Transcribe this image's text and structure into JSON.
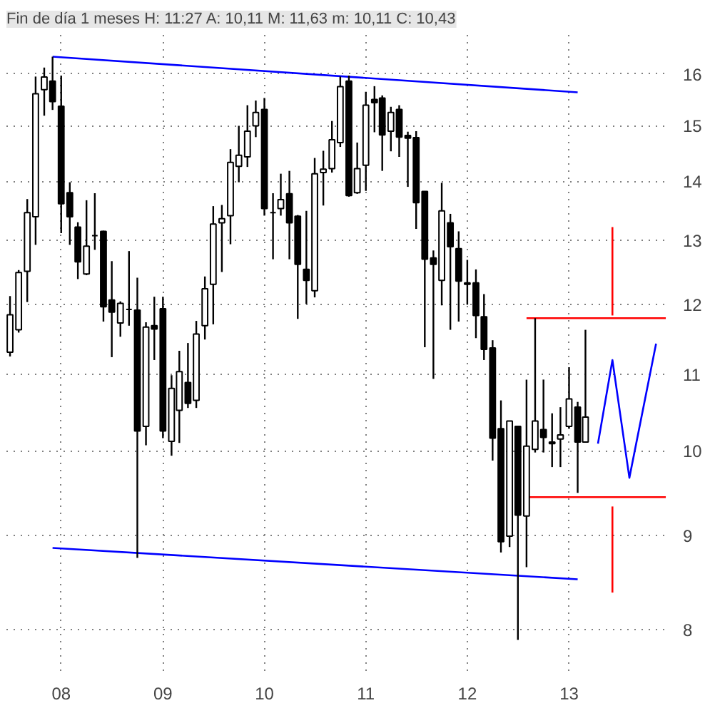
{
  "chart_data": {
    "type": "candlestick",
    "title": "Fin de día 1 meses H: 11:27 A: 10,11 M: 11,63 m: 10,11 C: 10,43",
    "x": [
      "2007-07",
      "2007-08",
      "2007-09",
      "2007-10",
      "2007-11",
      "2007-12",
      "2008-01",
      "2008-02",
      "2008-03",
      "2008-04",
      "2008-05",
      "2008-06",
      "2008-07",
      "2008-08",
      "2008-09",
      "2008-10",
      "2008-11",
      "2008-12",
      "2009-01",
      "2009-02",
      "2009-03",
      "2009-04",
      "2009-05",
      "2009-06",
      "2009-07",
      "2009-08",
      "2009-09",
      "2009-10",
      "2009-11",
      "2009-12",
      "2010-01",
      "2010-02",
      "2010-03",
      "2010-04",
      "2010-05",
      "2010-06",
      "2010-07",
      "2010-08",
      "2010-09",
      "2010-10",
      "2010-11",
      "2010-12",
      "2011-01",
      "2011-02",
      "2011-03",
      "2011-04",
      "2011-05",
      "2011-06",
      "2011-07",
      "2011-08",
      "2011-09",
      "2011-10",
      "2011-11",
      "2011-12",
      "2012-01",
      "2012-02",
      "2012-03",
      "2012-04",
      "2012-05",
      "2012-06",
      "2012-07",
      "2012-08",
      "2012-09",
      "2012-10",
      "2012-11",
      "2012-12",
      "2013-01",
      "2013-02",
      "2013-03"
    ],
    "ohlc": [
      [
        11.31,
        12.13,
        11.25,
        11.85
      ],
      [
        11.63,
        12.53,
        11.59,
        12.49
      ],
      [
        12.51,
        13.69,
        12.04,
        13.46
      ],
      [
        13.39,
        15.95,
        12.93,
        15.61
      ],
      [
        15.69,
        16.13,
        15.19,
        15.94
      ],
      [
        15.86,
        16.35,
        15.3,
        15.46
      ],
      [
        15.37,
        15.97,
        13.12,
        13.61
      ],
      [
        13.8,
        13.98,
        12.93,
        13.39
      ],
      [
        13.22,
        13.3,
        12.39,
        12.66
      ],
      [
        12.47,
        13.67,
        12.45,
        12.91
      ],
      [
        13.08,
        13.79,
        12.85,
        13.08
      ],
      [
        13.15,
        13.16,
        11.75,
        11.97
      ],
      [
        12.07,
        12.67,
        11.24,
        11.89
      ],
      [
        11.73,
        12.05,
        11.53,
        12.02
      ],
      [
        11.93,
        12.83,
        11.69,
        11.93
      ],
      [
        11.92,
        12.41,
        8.75,
        10.25
      ],
      [
        10.31,
        11.74,
        10.07,
        11.67
      ],
      [
        11.69,
        12.12,
        11.2,
        11.64
      ],
      [
        11.94,
        12.12,
        10.16,
        10.25
      ],
      [
        10.12,
        10.99,
        9.94,
        10.81
      ],
      [
        10.52,
        11.33,
        10.1,
        11.04
      ],
      [
        10.89,
        11.44,
        10.55,
        10.61
      ],
      [
        10.65,
        11.76,
        10.55,
        11.57
      ],
      [
        11.69,
        12.43,
        11.49,
        12.24
      ],
      [
        12.31,
        13.57,
        11.71,
        13.27
      ],
      [
        13.29,
        13.59,
        12.5,
        13.36
      ],
      [
        13.41,
        14.57,
        12.94,
        14.33
      ],
      [
        14.26,
        15.0,
        13.98,
        14.46
      ],
      [
        14.43,
        15.39,
        14.25,
        14.9
      ],
      [
        15.0,
        15.48,
        14.79,
        15.25
      ],
      [
        15.31,
        15.53,
        13.41,
        13.53
      ],
      [
        13.46,
        13.79,
        12.7,
        13.46
      ],
      [
        13.53,
        14.13,
        13.41,
        13.68
      ],
      [
        13.78,
        14.18,
        12.7,
        13.29
      ],
      [
        13.4,
        13.42,
        11.79,
        12.62
      ],
      [
        12.54,
        13.49,
        12.01,
        12.37
      ],
      [
        12.21,
        14.41,
        12.11,
        14.13
      ],
      [
        14.15,
        14.54,
        13.58,
        14.21
      ],
      [
        14.22,
        15.09,
        14.15,
        14.74
      ],
      [
        14.69,
        15.95,
        14.61,
        15.75
      ],
      [
        15.86,
        15.97,
        13.73,
        13.75
      ],
      [
        13.8,
        14.69,
        13.78,
        14.22
      ],
      [
        14.28,
        15.65,
        13.83,
        15.39
      ],
      [
        15.5,
        15.76,
        14.88,
        15.44
      ],
      [
        15.53,
        15.58,
        14.18,
        14.83
      ],
      [
        14.9,
        15.36,
        14.53,
        15.25
      ],
      [
        15.31,
        15.39,
        14.43,
        14.79
      ],
      [
        14.82,
        14.89,
        13.9,
        14.77
      ],
      [
        14.78,
        14.9,
        13.19,
        13.63
      ],
      [
        13.82,
        13.82,
        11.38,
        12.7
      ],
      [
        12.72,
        12.84,
        10.94,
        12.62
      ],
      [
        12.37,
        13.97,
        11.99,
        13.49
      ],
      [
        13.29,
        13.44,
        11.63,
        12.9
      ],
      [
        12.87,
        13.15,
        11.75,
        12.36
      ],
      [
        12.33,
        12.69,
        12.0,
        12.31
      ],
      [
        12.33,
        12.54,
        11.51,
        11.84
      ],
      [
        11.82,
        12.16,
        11.2,
        11.35
      ],
      [
        11.37,
        11.48,
        9.88,
        10.16
      ],
      [
        10.28,
        10.65,
        8.81,
        8.93
      ],
      [
        8.99,
        10.38,
        8.87,
        10.38
      ],
      [
        10.31,
        10.31,
        7.9,
        9.23
      ],
      [
        9.22,
        10.93,
        8.65,
        10.06
      ],
      [
        10.02,
        11.8,
        9.98,
        10.38
      ],
      [
        10.27,
        10.93,
        9.98,
        10.17
      ],
      [
        10.11,
        10.48,
        9.8,
        10.09
      ],
      [
        10.15,
        10.56,
        9.8,
        10.2
      ],
      [
        10.31,
        11.1,
        10.28,
        10.67
      ],
      [
        10.56,
        10.63,
        9.49,
        10.11
      ],
      [
        10.11,
        11.63,
        10.11,
        10.43
      ]
    ],
    "series": [
      {
        "type": "line",
        "color": "#0000ff",
        "x": [
          "2007-12",
          "2013-02"
        ],
        "values": [
          16.35,
          15.64
        ]
      },
      {
        "type": "line",
        "color": "#0000ff",
        "x": [
          "2007-12",
          "2013-02"
        ],
        "values": [
          8.86,
          8.52
        ]
      },
      {
        "type": "line",
        "color": "#ff0000",
        "x": [
          "2012-08",
          "2013-12-15"
        ],
        "values": [
          11.8,
          11.8
        ]
      },
      {
        "type": "line",
        "color": "#ff0000",
        "x": [
          "2012-08",
          "2013-12-15"
        ],
        "values": [
          9.44,
          9.44
        ]
      },
      {
        "type": "line",
        "color": "#0000ff",
        "x": [
          "2013-04-15",
          "2013-06-06",
          "2013-08-06",
          "2013-11-10"
        ],
        "values": [
          10.09,
          11.2,
          9.67,
          11.43
        ]
      },
      {
        "type": "line",
        "color": "#ff0000",
        "x": [
          "2013-06-06",
          "2013-06-06"
        ],
        "values": [
          11.84,
          13.22
        ]
      },
      {
        "type": "line",
        "color": "#ff0000",
        "x": [
          "2013-06-06",
          "2013-06-06"
        ],
        "values": [
          9.33,
          8.38
        ]
      }
    ],
    "log": true,
    "grid": true,
    "xlim": [
      "2007-06-18",
      "2013-12-20"
    ],
    "xticks": [
      {
        "value": "2008-01",
        "label": "08"
      },
      {
        "value": "2009-01",
        "label": "09"
      },
      {
        "value": "2010-01",
        "label": "10"
      },
      {
        "value": "2011-01",
        "label": "11"
      },
      {
        "value": "2012-01",
        "label": "12"
      },
      {
        "value": "2013-01",
        "label": "13"
      }
    ],
    "ylim": [
      7.6,
      16.8
    ],
    "yticks": [
      8,
      9,
      10,
      11,
      12,
      13,
      14,
      15,
      16
    ]
  }
}
